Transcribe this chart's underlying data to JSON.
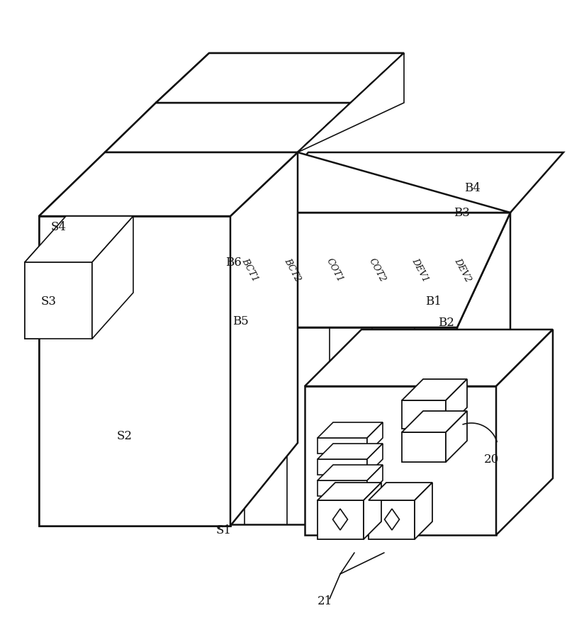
{
  "bg_color": "#ffffff",
  "lc": "#111111",
  "lw": 1.8,
  "lw_thin": 1.2,
  "fig_width": 8.0,
  "fig_height": 8.82,
  "module_labels": [
    "BCT1",
    "BCT2",
    "COT1",
    "COT2",
    "DEV1",
    "DEV2"
  ],
  "label_fs": 12,
  "module_fs": 9
}
